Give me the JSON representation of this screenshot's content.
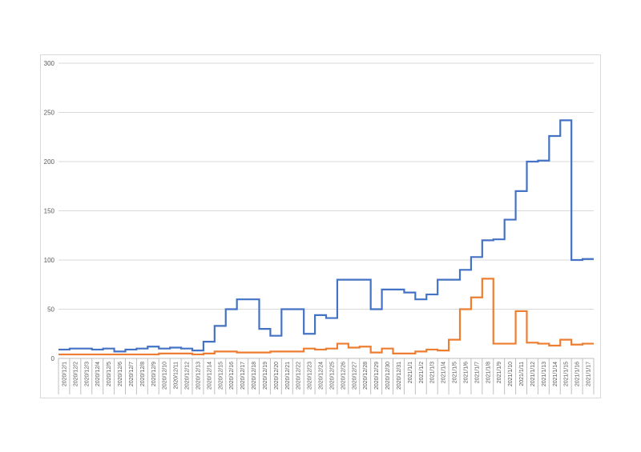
{
  "chart_data": {
    "type": "line",
    "step": true,
    "x": [
      "2020/12/1",
      "2020/12/2",
      "2020/12/3",
      "2020/12/4",
      "2020/12/5",
      "2020/12/6",
      "2020/12/7",
      "2020/12/8",
      "2020/12/9",
      "2020/12/10",
      "2020/12/11",
      "2020/12/12",
      "2020/12/13",
      "2020/12/14",
      "2020/12/15",
      "2020/12/16",
      "2020/12/17",
      "2020/12/18",
      "2020/12/19",
      "2020/12/20",
      "2020/12/21",
      "2020/12/22",
      "2020/12/23",
      "2020/12/24",
      "2020/12/25",
      "2020/12/26",
      "2020/12/27",
      "2020/12/28",
      "2020/12/29",
      "2020/12/30",
      "2020/12/31",
      "2021/1/1",
      "2021/1/2",
      "2021/1/3",
      "2021/1/4",
      "2021/1/5",
      "2021/1/6",
      "2021/1/7",
      "2021/1/8",
      "2021/1/9",
      "2021/1/10",
      "2021/1/11",
      "2021/1/12",
      "2021/1/13",
      "2021/1/14",
      "2021/1/15",
      "2021/1/16",
      "2021/1/17"
    ],
    "series": [
      {
        "color": "#4472c4",
        "values": [
          9,
          10,
          10,
          9,
          10,
          7,
          9,
          10,
          12,
          10,
          11,
          10,
          8,
          17,
          33,
          50,
          60,
          60,
          30,
          23,
          50,
          50,
          25,
          44,
          41,
          80,
          80,
          80,
          50,
          70,
          70,
          67,
          60,
          65,
          80,
          80,
          90,
          103,
          120,
          121,
          141,
          170,
          200,
          201,
          226,
          242,
          100,
          101
        ]
      },
      {
        "color": "#ed7d31",
        "values": [
          4,
          4,
          4,
          4,
          4,
          4,
          4,
          4,
          4,
          5,
          5,
          5,
          4,
          5,
          7,
          7,
          6,
          6,
          6,
          7,
          7,
          7,
          10,
          9,
          10,
          15,
          11,
          12,
          6,
          10,
          5,
          5,
          7,
          9,
          8,
          19,
          50,
          62,
          81,
          15,
          15,
          48,
          16,
          15,
          13,
          19,
          14,
          15
        ]
      }
    ],
    "yticks": [
      0,
      50,
      100,
      150,
      200,
      250,
      300
    ],
    "ylim": [
      0,
      300
    ],
    "grid": true,
    "legend": "none",
    "axis_color": "#bfbfbf",
    "grid_color": "#d9d9d9"
  }
}
